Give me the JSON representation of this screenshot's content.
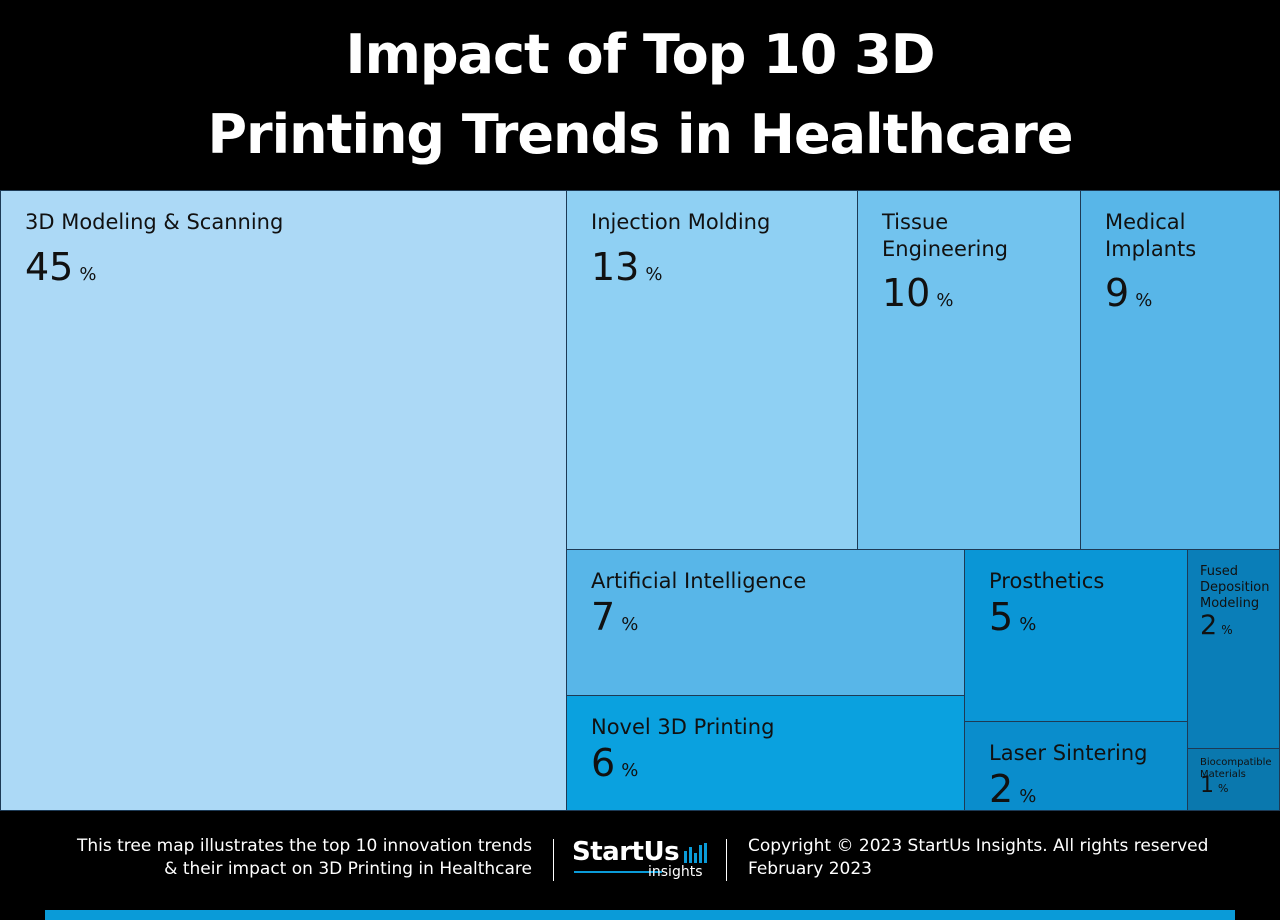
{
  "title": {
    "line1": "Impact of Top 10 3D",
    "line2": "Printing Trends in Healthcare"
  },
  "chart_data": {
    "type": "treemap",
    "title": "Impact of Top 10 3D Printing Trends in Healthcare",
    "unit": "%",
    "items": [
      {
        "label": "3D Modeling & Scanning",
        "value": 45,
        "color": "#acd9f6"
      },
      {
        "label": "Injection Molding",
        "value": 13,
        "color": "#8fd0f3"
      },
      {
        "label": "Tissue Engineering",
        "value": 10,
        "color": "#72c3ee"
      },
      {
        "label": "Medical Implants",
        "value": 9,
        "color": "#58b6e8"
      },
      {
        "label": "Artificial Intelligence",
        "value": 7,
        "color": "#58b6e8"
      },
      {
        "label": "Novel 3D Printing",
        "value": 6,
        "color": "#0aa1df"
      },
      {
        "label": "Prosthetics",
        "value": 5,
        "color": "#0a96d6"
      },
      {
        "label": "Laser Sintering",
        "value": 2,
        "color": "#0a8dcc"
      },
      {
        "label": "Fused Deposition Modeling",
        "value": 2,
        "color": "#0a7eb8"
      },
      {
        "label": "Biocompatible Materials",
        "value": 1,
        "color": "#0a78ae"
      }
    ]
  },
  "footer": {
    "desc_line1": "This tree map illustrates the top 10 innovation trends",
    "desc_line2": "& their impact on 3D Printing in Healthcare",
    "logo_name": "StartUs",
    "logo_sub": "insights",
    "copyright": "Copyright © 2023 StartUs Insights. All rights reserved",
    "date": "February 2023",
    "accent_color": "#0a9bd8"
  }
}
